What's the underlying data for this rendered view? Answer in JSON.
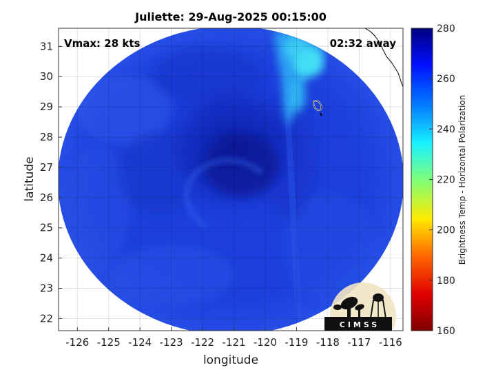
{
  "title": "Juliette: 29-Aug-2025 00:15:00",
  "annotations": {
    "vmax": "Vmax: 28 kts",
    "time_away": "02:32 away"
  },
  "axes": {
    "xlabel": "longitude",
    "ylabel": "latitude",
    "x_ticks": [
      "-126",
      "-125",
      "-124",
      "-123",
      "-122",
      "-121",
      "-120",
      "-119",
      "-118",
      "-117",
      "-116"
    ],
    "y_ticks": [
      "22",
      "23",
      "24",
      "25",
      "26",
      "27",
      "28",
      "29",
      "30",
      "31"
    ],
    "xlim": [
      -126.6,
      -115.6
    ],
    "ylim": [
      21.6,
      31.6
    ]
  },
  "colorbar": {
    "label": "Brightness Temp - Horizontal Polarization",
    "ticks": [
      "160",
      "180",
      "200",
      "220",
      "240",
      "260",
      "280"
    ],
    "range": [
      160,
      280
    ]
  },
  "logo": {
    "text": "CIMSS"
  },
  "colors": {
    "swath_background": "#1c3fdc",
    "core_dark": "#0b1c9f",
    "cyan_band": "#38e2f2"
  }
}
